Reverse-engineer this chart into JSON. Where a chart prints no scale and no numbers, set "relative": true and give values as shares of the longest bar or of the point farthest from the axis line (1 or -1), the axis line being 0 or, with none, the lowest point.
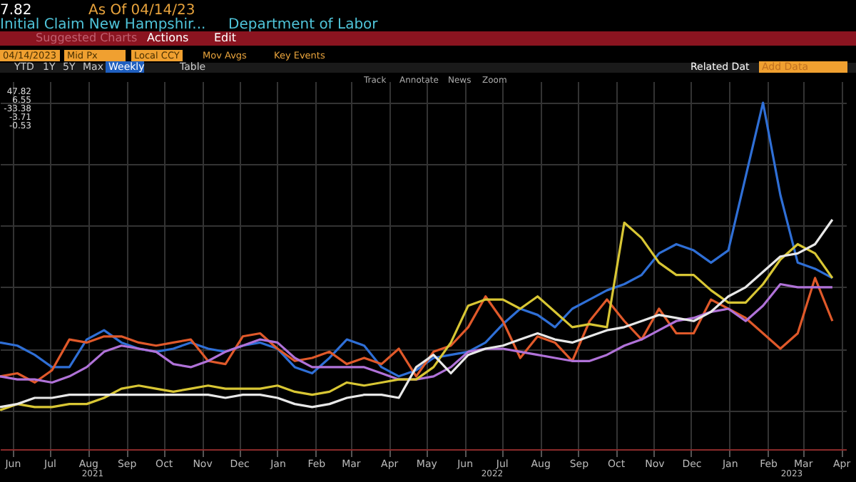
{
  "chart_data": {
    "type": "line",
    "title": "Initial Claim New Hampshir...",
    "subtitle": "Department of Labor",
    "annotations": [
      "7.82",
      "As Of 04/14/23",
      "Suggested Charts",
      "Actions",
      "Edit",
      "04/14/2023",
      "Mid Px",
      "Local CCY",
      "Mov Avgs",
      "Key Events",
      "YTD",
      "1Y",
      "5Y",
      "Max",
      "Weekly",
      "Table",
      "Related Dat",
      "Add Data",
      "Track",
      "Annotate",
      "News",
      "Zoom",
      "47.82",
      "6.55",
      "-33.38",
      "-3.71",
      "-0.53",
      "2021",
      "2022",
      "2023"
    ],
    "relative": true,
    "grid": true,
    "xlim": [
      "2021-06-05",
      "2023-04-19"
    ],
    "xticks": [
      {
        "value": "2021-06-15",
        "label": "Jun"
      },
      {
        "value": "2021-07-15",
        "label": "Jul"
      },
      {
        "value": "2021-08-15",
        "label": "Aug"
      },
      {
        "value": "2021-09-15",
        "label": "Sep"
      },
      {
        "value": "2021-10-15",
        "label": "Oct"
      },
      {
        "value": "2021-11-15",
        "label": "Nov"
      },
      {
        "value": "2021-12-15",
        "label": "Dec"
      },
      {
        "value": "2022-01-15",
        "label": "Jan"
      },
      {
        "value": "2022-02-15",
        "label": "Feb"
      },
      {
        "value": "2022-03-15",
        "label": "Mar"
      },
      {
        "value": "2022-04-15",
        "label": "Apr"
      },
      {
        "value": "2022-05-15",
        "label": "May"
      },
      {
        "value": "2022-06-15",
        "label": "Jun"
      },
      {
        "value": "2022-07-15",
        "label": "Jul"
      },
      {
        "value": "2022-08-15",
        "label": "Aug"
      },
      {
        "value": "2022-09-15",
        "label": "Sep"
      },
      {
        "value": "2022-10-15",
        "label": "Oct"
      },
      {
        "value": "2022-11-15",
        "label": "Nov"
      },
      {
        "value": "2022-12-15",
        "label": "Dec"
      },
      {
        "value": "2023-01-15",
        "label": "Jan"
      },
      {
        "value": "2023-02-15",
        "label": "Feb"
      },
      {
        "value": "2023-03-15",
        "label": "Mar"
      },
      {
        "value": "2023-04-15",
        "label": "Apr"
      }
    ],
    "x": [
      "2021-06-05",
      "2021-06-19",
      "2021-07-03",
      "2021-07-17",
      "2021-07-31",
      "2021-08-14",
      "2021-08-28",
      "2021-09-11",
      "2021-09-25",
      "2021-10-09",
      "2021-10-23",
      "2021-11-06",
      "2021-11-20",
      "2021-12-04",
      "2021-12-18",
      "2022-01-01",
      "2022-01-15",
      "2022-01-29",
      "2022-02-12",
      "2022-02-26",
      "2022-03-12",
      "2022-03-26",
      "2022-04-09",
      "2022-04-23",
      "2022-05-07",
      "2022-05-21",
      "2022-06-04",
      "2022-06-18",
      "2022-07-02",
      "2022-07-16",
      "2022-07-30",
      "2022-08-13",
      "2022-08-27",
      "2022-09-10",
      "2022-09-24",
      "2022-10-08",
      "2022-10-22",
      "2022-11-05",
      "2022-11-19",
      "2022-12-03",
      "2022-12-17",
      "2022-12-31",
      "2023-01-14",
      "2023-01-28",
      "2023-02-11",
      "2023-02-25",
      "2023-03-11",
      "2023-03-25",
      "2023-04-08"
    ],
    "series": [
      {
        "color": "#2f6fd6",
        "values": [
          0.22,
          0.21,
          0.18,
          0.14,
          0.14,
          0.23,
          0.26,
          0.22,
          0.2,
          0.19,
          0.2,
          0.22,
          0.2,
          0.19,
          0.21,
          0.22,
          0.2,
          0.14,
          0.12,
          0.17,
          0.23,
          0.21,
          0.14,
          0.11,
          0.13,
          0.17,
          0.18,
          0.19,
          0.22,
          0.28,
          0.33,
          0.31,
          0.27,
          0.33,
          0.36,
          0.39,
          0.41,
          0.44,
          0.51,
          0.54,
          0.52,
          0.48,
          0.52,
          0.76,
          1,
          0.7,
          0.48,
          0.46,
          0.43
        ]
      },
      {
        "color": "#e0592a",
        "values": [
          0.11,
          0.12,
          0.09,
          0.13,
          0.23,
          0.22,
          0.24,
          0.24,
          0.22,
          0.21,
          0.22,
          0.23,
          0.16,
          0.15,
          0.24,
          0.25,
          0.2,
          0.16,
          0.17,
          0.19,
          0.15,
          0.17,
          0.15,
          0.2,
          0.11,
          0.19,
          0.21,
          0.27,
          0.37,
          0.29,
          0.17,
          0.24,
          0.22,
          0.16,
          0.29,
          0.36,
          0.29,
          0.23,
          0.33,
          0.25,
          0.25,
          0.36,
          0.33,
          0.3,
          0.25,
          0.2,
          0.25,
          0.43,
          0.29
        ]
      },
      {
        "color": "#b072d8",
        "values": [
          0.11,
          0.1,
          0.1,
          0.09,
          0.11,
          0.14,
          0.19,
          0.21,
          0.2,
          0.19,
          0.15,
          0.14,
          0.16,
          0.19,
          0.21,
          0.23,
          0.22,
          0.17,
          0.14,
          0.14,
          0.14,
          0.14,
          0.12,
          0.1,
          0.1,
          0.11,
          0.14,
          0.19,
          0.2,
          0.2,
          0.19,
          0.18,
          0.17,
          0.16,
          0.16,
          0.18,
          0.21,
          0.23,
          0.26,
          0.29,
          0.3,
          0.32,
          0.33,
          0.29,
          0.34,
          0.41,
          0.4,
          0.4,
          0.4
        ]
      },
      {
        "color": "#d8c634",
        "values": [
          0,
          0.02,
          0.01,
          0.01,
          0.02,
          0.02,
          0.04,
          0.07,
          0.08,
          0.07,
          0.06,
          0.07,
          0.08,
          0.07,
          0.07,
          0.07,
          0.08,
          0.06,
          0.05,
          0.06,
          0.09,
          0.08,
          0.09,
          0.1,
          0.1,
          0.14,
          0.22,
          0.34,
          0.36,
          0.36,
          0.33,
          0.37,
          0.32,
          0.27,
          0.28,
          0.27,
          0.61,
          0.56,
          0.48,
          0.44,
          0.44,
          0.39,
          0.35,
          0.35,
          0.41,
          0.49,
          0.54,
          0.51,
          0.43
        ]
      },
      {
        "color": "#e8e8e8",
        "values": [
          0.01,
          0.02,
          0.04,
          0.04,
          0.05,
          0.05,
          0.05,
          0.05,
          0.05,
          0.05,
          0.05,
          0.05,
          0.05,
          0.04,
          0.05,
          0.05,
          0.04,
          0.02,
          0.01,
          0.02,
          0.04,
          0.05,
          0.05,
          0.04,
          0.14,
          0.18,
          0.12,
          0.18,
          0.2,
          0.21,
          0.23,
          0.25,
          0.23,
          0.22,
          0.24,
          0.26,
          0.27,
          0.29,
          0.31,
          0.3,
          0.29,
          0.32,
          0.37,
          0.4,
          0.45,
          0.5,
          0.51,
          0.54,
          0.62
        ]
      }
    ]
  }
}
